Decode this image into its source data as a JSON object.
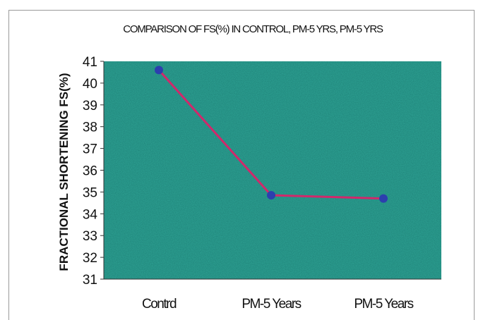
{
  "chart_data": {
    "type": "line",
    "title": "COMPARISON OF FS(%) IN CONTROL, PM-5 YRS, PM-5 YRS",
    "xlabel": "",
    "ylabel": "FRACTIONAL SHORTENING FS(%)",
    "categories": [
      "Contrd",
      "PM-5 Years",
      "PM-5 Years"
    ],
    "values": [
      40.6,
      34.85,
      34.7
    ],
    "ylim": [
      31,
      41
    ],
    "yticks": [
      "31",
      "32",
      "33",
      "34",
      "35",
      "36",
      "37",
      "38",
      "39",
      "40",
      "41"
    ],
    "grid": false,
    "legend": "none",
    "colors": {
      "plot_background": "#2fa596",
      "line": "#d1286b",
      "marker": "#2c3fae"
    }
  }
}
